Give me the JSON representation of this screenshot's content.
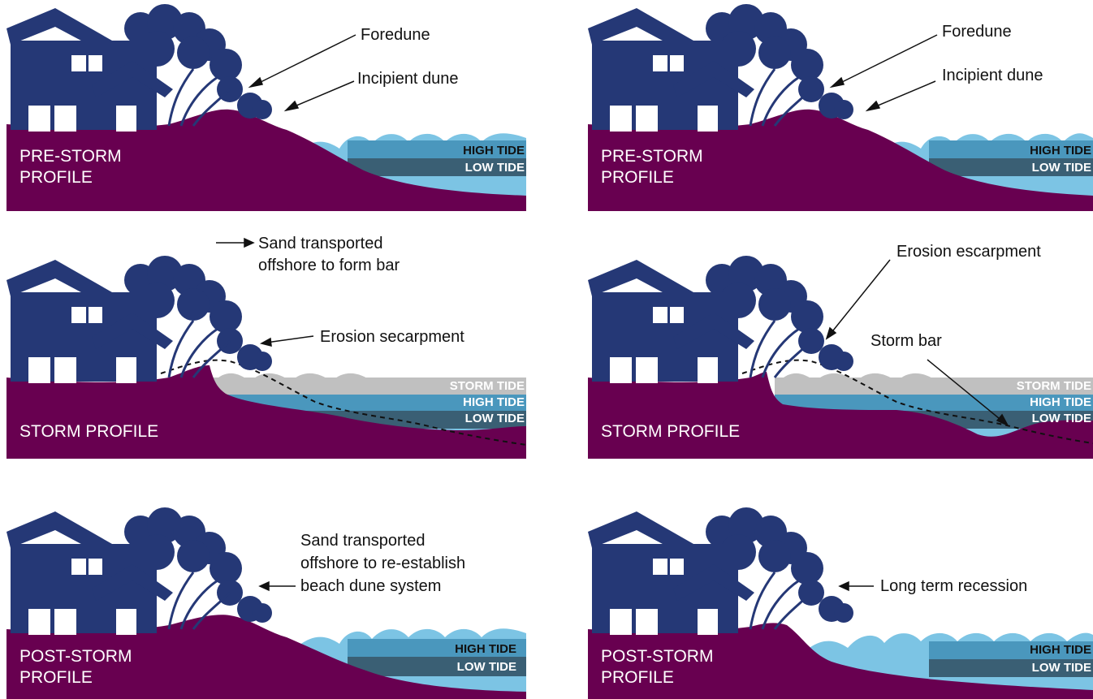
{
  "colors": {
    "house": "#253876",
    "ground": "#680050",
    "water_light": "#7cc4e4",
    "water_mid": "#4a97bd",
    "water_dark": "#3a5f74",
    "storm_water": "#c0c0c0",
    "annotation": "#111111"
  },
  "panels": {
    "p1": {
      "profile": "PRE-STORM\nPROFILE",
      "high": "HIGH TIDE",
      "low": "LOW TIDE",
      "ann1": "Foredune",
      "ann2": "Incipient dune"
    },
    "p2": {
      "profile": "PRE-STORM\nPROFILE",
      "high": "HIGH TIDE",
      "low": "LOW TIDE",
      "ann1": "Foredune",
      "ann2": "Incipient dune"
    },
    "p3": {
      "profile": "STORM PROFILE",
      "storm": "STORM TIDE",
      "high": "HIGH TIDE",
      "low": "LOW TIDE",
      "ann1": "Sand transported\noffshore to form bar",
      "ann2": "Erosion secarpment"
    },
    "p4": {
      "profile": "STORM PROFILE",
      "storm": "STORM TIDE",
      "high": "HIGH TIDE",
      "low": "LOW TIDE",
      "ann1": "Erosion escarpment",
      "ann2": "Storm bar"
    },
    "p5": {
      "profile": "POST-STORM\nPROFILE",
      "high": "HIGH TIDE",
      "low": "LOW TIDE",
      "ann1": "Sand transported\noffshore to re-establish\nbeach dune system"
    },
    "p6": {
      "profile": "POST-STORM\nPROFILE",
      "high": "HIGH TIDE",
      "low": "LOW TIDE",
      "ann1": "Long term recession"
    }
  }
}
